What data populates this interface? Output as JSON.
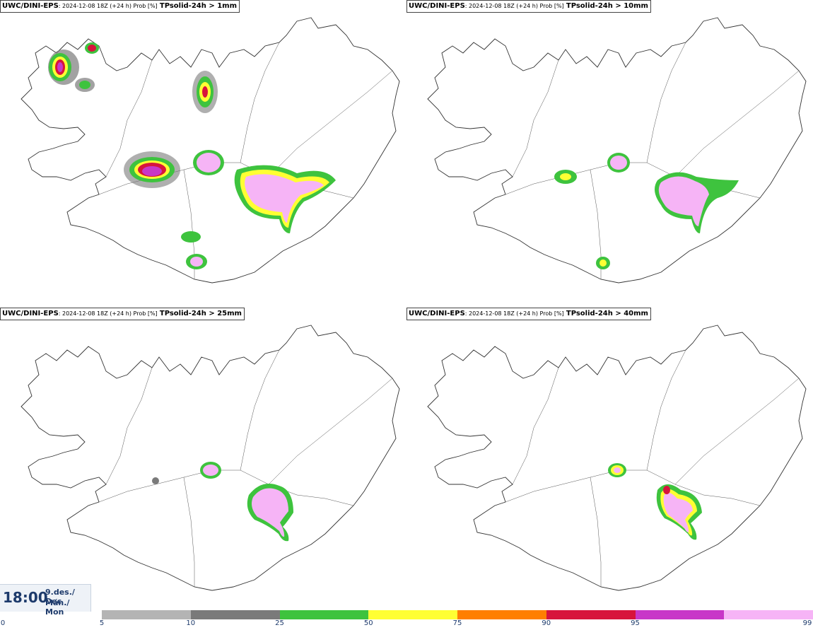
{
  "panels": [
    {
      "model": "UWC/DINI-EPS",
      "meta": ": 2024-12-08 18Z (+24 h) Prob [%]",
      "param": "TPsolid-24h > 1mm"
    },
    {
      "model": "UWC/DINI-EPS",
      "meta": ": 2024-12-08 18Z (+24 h) Prob [%]",
      "param": "TPsolid-24h > 10mm"
    },
    {
      "model": "UWC/DINI-EPS",
      "meta": ": 2024-12-08 18Z (+24 h) Prob [%]",
      "param": "TPsolid-24h > 25mm"
    },
    {
      "model": "UWC/DINI-EPS",
      "meta": ": 2024-12-08 18Z (+24 h) Prob [%]",
      "param": "TPsolid-24h > 40mm"
    }
  ],
  "valid_time": {
    "time": "18:00",
    "date": "9.des./ Dec",
    "day": "Mán./ Mon"
  },
  "legend": {
    "ticks": [
      "0",
      "5",
      "10",
      "25",
      "50",
      "75",
      "90",
      "95",
      "99"
    ],
    "colors": [
      "#b4b4b4",
      "#7a7a7a",
      "#3ec33e",
      "#ffff33",
      "#ff7f00",
      "#d7143c",
      "#c837c8",
      "#f6b4f6"
    ]
  }
}
